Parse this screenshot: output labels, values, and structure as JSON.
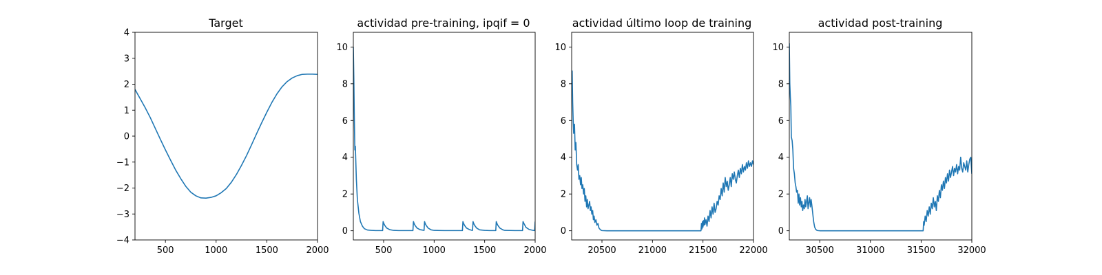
{
  "chart_data": [
    {
      "type": "line",
      "title": "Target",
      "xlabel": "",
      "ylabel": "",
      "xlim": [
        200,
        2000
      ],
      "ylim": [
        -4,
        4
      ],
      "xticks": [
        "500",
        "1000",
        "1500",
        "2000"
      ],
      "yticks": [
        "−4",
        "−3",
        "−2",
        "−1",
        "0",
        "1",
        "2",
        "3",
        "4"
      ],
      "grid": false,
      "color": "#1f77b4",
      "series": [
        {
          "x": [
            200,
            250,
            300,
            350,
            400,
            450,
            500,
            550,
            600,
            650,
            700,
            750,
            800,
            850,
            900,
            950,
            1000,
            1050,
            1100,
            1150,
            1200,
            1250,
            1300,
            1350,
            1400,
            1450,
            1500,
            1550,
            1600,
            1650,
            1700,
            1750,
            1800,
            1850,
            1900,
            1950,
            2000
          ],
          "y": [
            1.8,
            1.45,
            1.1,
            0.72,
            0.3,
            -0.12,
            -0.53,
            -0.92,
            -1.3,
            -1.63,
            -1.93,
            -2.16,
            -2.3,
            -2.38,
            -2.39,
            -2.36,
            -2.3,
            -2.18,
            -2.02,
            -1.78,
            -1.48,
            -1.13,
            -0.75,
            -0.33,
            0.1,
            0.52,
            0.92,
            1.3,
            1.63,
            1.9,
            2.1,
            2.24,
            2.33,
            2.38,
            2.39,
            2.39,
            2.38
          ]
        }
      ]
    },
    {
      "type": "line",
      "title": "actividad pre-training, ipqif = 0",
      "xlabel": "",
      "ylabel": "",
      "xlim": [
        200,
        2000
      ],
      "ylim": [
        -0.5,
        10.8
      ],
      "xticks": [
        "500",
        "1000",
        "1500",
        "2000"
      ],
      "yticks": [
        "0",
        "2",
        "4",
        "6",
        "8",
        "10"
      ],
      "grid": false,
      "color": "#1f77b4",
      "series": [
        {
          "x": [
            200,
            205,
            210,
            215,
            220,
            230,
            240,
            255,
            270,
            290,
            310,
            340,
            380,
            420,
            490,
            495,
            500,
            510,
            530,
            560,
            600,
            650,
            700,
            790,
            795,
            800,
            810,
            830,
            860,
            890,
            900,
            905,
            910,
            920,
            940,
            970,
            1000,
            1100,
            1200,
            1280,
            1285,
            1290,
            1300,
            1320,
            1350,
            1370,
            1380,
            1385,
            1390,
            1400,
            1420,
            1450,
            1500,
            1550,
            1610,
            1615,
            1620,
            1630,
            1650,
            1680,
            1700,
            1800,
            1860,
            1875,
            1880,
            1890,
            1910,
            1940,
            1980,
            1995,
            2000
          ],
          "y": [
            10.0,
            8.3,
            6.1,
            4.4,
            4.6,
            2.8,
            1.7,
            0.95,
            0.5,
            0.25,
            0.11,
            0.04,
            0.02,
            0.01,
            0.01,
            0.5,
            0.42,
            0.3,
            0.15,
            0.06,
            0.02,
            0.01,
            0.01,
            0.01,
            0.5,
            0.42,
            0.3,
            0.15,
            0.06,
            0.03,
            0.02,
            0.5,
            0.42,
            0.3,
            0.15,
            0.05,
            0.02,
            0.01,
            0.01,
            0.01,
            0.5,
            0.42,
            0.3,
            0.15,
            0.06,
            0.03,
            0.02,
            0.5,
            0.42,
            0.3,
            0.15,
            0.05,
            0.02,
            0.01,
            0.01,
            0.5,
            0.42,
            0.3,
            0.15,
            0.05,
            0.02,
            0.01,
            0.01,
            0.01,
            0.5,
            0.38,
            0.18,
            0.07,
            0.02,
            0.01,
            0.5
          ]
        }
      ]
    },
    {
      "type": "line",
      "title": "actividad último loop de training",
      "xlabel": "",
      "ylabel": "",
      "xlim": [
        20200,
        22000
      ],
      "ylim": [
        -0.5,
        10.8
      ],
      "xticks": [
        "20500",
        "21000",
        "21500",
        "22000"
      ],
      "yticks": [
        "0",
        "2",
        "4",
        "6",
        "8",
        "10"
      ],
      "grid": false,
      "color": "#1f77b4",
      "series": [
        {
          "x": [
            20200,
            20205,
            20210,
            20215,
            20220,
            20228,
            20235,
            20242,
            20250,
            20258,
            20265,
            20272,
            20280,
            20288,
            20295,
            20302,
            20310,
            20318,
            20325,
            20332,
            20340,
            20348,
            20355,
            20362,
            20370,
            20378,
            20385,
            20392,
            20400,
            20408,
            20415,
            20422,
            20430,
            20440,
            20450,
            20460,
            20470,
            20485,
            20500,
            20550,
            20600,
            20700,
            20800,
            20900,
            21000,
            21100,
            21200,
            21300,
            21400,
            21480,
            21485,
            21490,
            21495,
            21500,
            21505,
            21510,
            21515,
            21520,
            21530,
            21540,
            21550,
            21560,
            21570,
            21580,
            21590,
            21600,
            21610,
            21620,
            21630,
            21640,
            21650,
            21660,
            21670,
            21680,
            21690,
            21700,
            21710,
            21720,
            21730,
            21740,
            21750,
            21760,
            21770,
            21780,
            21790,
            21800,
            21810,
            21820,
            21830,
            21840,
            21850,
            21860,
            21870,
            21880,
            21890,
            21900,
            21910,
            21920,
            21930,
            21940,
            21950,
            21960,
            21970,
            21980,
            21990,
            22000
          ],
          "y": [
            8.4,
            8.7,
            7.0,
            6.0,
            5.3,
            5.8,
            4.4,
            4.8,
            3.6,
            3.3,
            3.6,
            2.8,
            3.0,
            2.5,
            2.9,
            2.3,
            2.5,
            2.0,
            2.3,
            1.6,
            1.9,
            1.3,
            1.7,
            1.2,
            1.4,
            1.6,
            1.1,
            1.3,
            0.9,
            1.1,
            0.6,
            0.8,
            0.45,
            0.6,
            0.3,
            0.4,
            0.15,
            0.05,
            0.01,
            0.0,
            0.0,
            0.0,
            0.0,
            0.0,
            0.0,
            0.0,
            0.0,
            0.0,
            0.0,
            0.0,
            0.4,
            0.1,
            0.5,
            0.2,
            0.55,
            0.3,
            0.7,
            0.35,
            0.6,
            0.25,
            0.8,
            0.5,
            1.1,
            0.7,
            1.3,
            0.9,
            1.5,
            1.0,
            1.2,
            1.6,
            1.4,
            1.9,
            1.7,
            2.3,
            1.9,
            2.6,
            2.1,
            2.9,
            2.4,
            2.7,
            2.2,
            2.5,
            2.9,
            2.4,
            3.1,
            2.8,
            3.2,
            2.8,
            2.6,
            3.0,
            3.3,
            2.9,
            3.4,
            3.1,
            3.6,
            3.2,
            3.5,
            3.3,
            3.7,
            3.4,
            3.8,
            3.5,
            3.7,
            3.5,
            3.8,
            3.6
          ]
        }
      ]
    },
    {
      "type": "line",
      "title": "actividad post-training",
      "xlabel": "",
      "ylabel": "",
      "xlim": [
        30200,
        32000
      ],
      "ylim": [
        -0.5,
        10.8
      ],
      "xticks": [
        "30500",
        "31000",
        "31500",
        "32000"
      ],
      "yticks": [
        "0",
        "2",
        "4",
        "6",
        "8",
        "10"
      ],
      "grid": false,
      "color": "#1f77b4",
      "series": [
        {
          "x": [
            30200,
            30205,
            30210,
            30215,
            30220,
            30228,
            30235,
            30242,
            30250,
            30258,
            30265,
            30272,
            30280,
            30288,
            30295,
            30302,
            30310,
            30318,
            30325,
            30332,
            30340,
            30348,
            30355,
            30362,
            30370,
            30378,
            30385,
            30392,
            30400,
            30408,
            30415,
            30422,
            30430,
            30440,
            30450,
            30460,
            30470,
            30480,
            30500,
            30600,
            30700,
            30800,
            30900,
            31000,
            31100,
            31200,
            31300,
            31400,
            31500,
            31520,
            31525,
            31530,
            31540,
            31550,
            31560,
            31570,
            31580,
            31590,
            31600,
            31610,
            31620,
            31630,
            31640,
            31650,
            31660,
            31670,
            31680,
            31690,
            31700,
            31710,
            31720,
            31730,
            31740,
            31750,
            31760,
            31770,
            31780,
            31790,
            31800,
            31810,
            31820,
            31830,
            31840,
            31850,
            31860,
            31870,
            31880,
            31890,
            31900,
            31910,
            31920,
            31930,
            31940,
            31950,
            31960,
            31970,
            31980,
            31990,
            32000
          ],
          "y": [
            10.2,
            8.0,
            7.3,
            6.8,
            5.1,
            4.9,
            4.4,
            3.4,
            3.1,
            2.6,
            2.4,
            2.1,
            2.2,
            1.5,
            2.0,
            1.4,
            1.8,
            1.3,
            1.6,
            1.1,
            1.4,
            1.2,
            1.7,
            1.3,
            1.6,
            1.9,
            1.2,
            1.5,
            1.8,
            1.3,
            1.7,
            1.4,
            1.0,
            0.5,
            0.2,
            0.08,
            0.03,
            0.01,
            0.0,
            0.0,
            0.0,
            0.0,
            0.0,
            0.0,
            0.0,
            0.0,
            0.0,
            0.0,
            0.0,
            0.0,
            0.5,
            0.3,
            0.8,
            0.5,
            1.1,
            0.8,
            1.3,
            0.9,
            1.5,
            1.2,
            1.8,
            1.3,
            1.6,
            1.1,
            1.9,
            1.6,
            2.2,
            1.8,
            2.5,
            2.2,
            2.7,
            2.3,
            2.9,
            2.6,
            3.1,
            2.7,
            3.3,
            2.9,
            3.2,
            3.5,
            3.0,
            3.4,
            3.2,
            3.6,
            3.1,
            3.5,
            3.3,
            4.0,
            3.4,
            3.2,
            3.7,
            3.5,
            3.3,
            3.8,
            3.2,
            3.6,
            3.9,
            4.0,
            3.1
          ]
        }
      ]
    }
  ]
}
